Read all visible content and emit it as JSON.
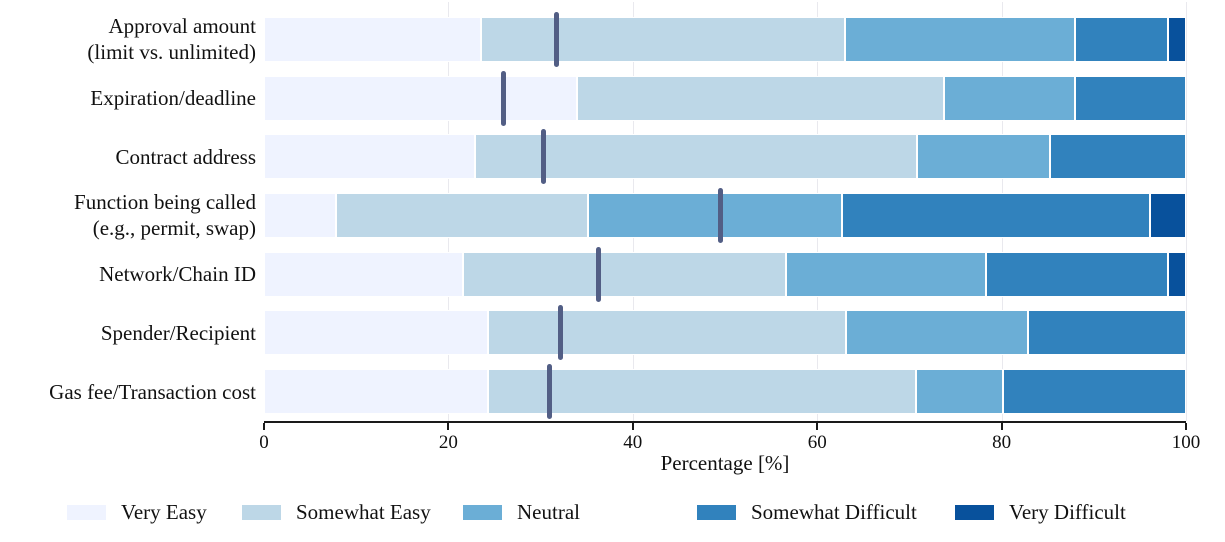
{
  "chart_data": {
    "type": "bar",
    "subtype": "horizontal-stacked-likert",
    "title": "",
    "xlabel": "Percentage [%]",
    "xlim": [
      0,
      100
    ],
    "xticks": [
      0,
      20,
      40,
      60,
      80,
      100
    ],
    "grid": "vertical, light gray",
    "legend_position": "bottom",
    "legend": [
      "Very Easy",
      "Somewhat Easy",
      "Neutral",
      "Somewhat Difficult",
      "Very Difficult"
    ],
    "colors": [
      "#eff3ff",
      "#bdd7e7",
      "#6baed6",
      "#3182bd",
      "#08519c"
    ],
    "mean_marker_color": "#525e85",
    "rows": [
      {
        "category": [
          "Approval amount",
          "(limit vs. unlimited)"
        ],
        "values": [
          23.5,
          39.5,
          25.0,
          10.0,
          2.0
        ],
        "mean": 31.7
      },
      {
        "category": [
          "Expiration/deadline"
        ],
        "values": [
          34.0,
          39.7,
          14.3,
          12.0,
          0.0
        ],
        "mean": 26.0
      },
      {
        "category": [
          "Contract address"
        ],
        "values": [
          22.9,
          47.9,
          14.5,
          14.7,
          0.0
        ],
        "mean": 30.3
      },
      {
        "category": [
          "Function being called",
          "(e.g., permit, swap)"
        ],
        "values": [
          7.8,
          27.3,
          27.6,
          33.4,
          3.9
        ],
        "mean": 49.5
      },
      {
        "category": [
          "Network/Chain ID"
        ],
        "values": [
          21.6,
          35.0,
          21.7,
          19.7,
          2.0
        ],
        "mean": 36.3
      },
      {
        "category": [
          "Spender/Recipient"
        ],
        "values": [
          24.3,
          38.8,
          19.8,
          17.1,
          0.0
        ],
        "mean": 32.2
      },
      {
        "category": [
          "Gas fee/Transaction cost"
        ],
        "values": [
          24.3,
          46.4,
          9.5,
          19.8,
          0.0
        ],
        "mean": 31.0
      }
    ]
  }
}
